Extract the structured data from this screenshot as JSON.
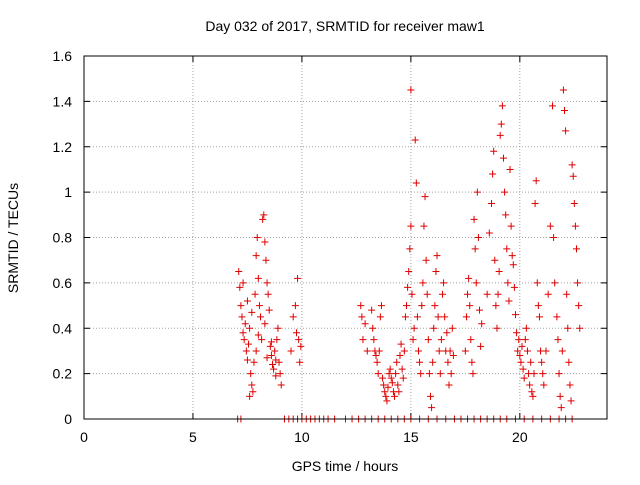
{
  "chart_data": {
    "type": "scatter",
    "title": "Day 032 of 2017, SRMTID for receiver maw1",
    "xlabel": "GPS time / hours",
    "ylabel": "SRMTID / TECUs",
    "xlim": [
      0,
      24
    ],
    "ylim": [
      0,
      1.6
    ],
    "x_ticks": [
      "0",
      "5",
      "10",
      "15",
      "20"
    ],
    "x_tick_values": [
      0,
      5,
      10,
      15,
      20
    ],
    "y_ticks": [
      "0",
      "0.2",
      "0.4",
      "0.6",
      "0.8",
      "1",
      "1.2",
      "1.4",
      "1.6"
    ],
    "y_tick_values": [
      0,
      0.2,
      0.4,
      0.6,
      0.8,
      1.0,
      1.2,
      1.4,
      1.6
    ],
    "grid": true,
    "marker": "+",
    "series_color": "#e00000",
    "series": [
      {
        "name": "maw1",
        "points": [
          [
            7.1,
            0.65
          ],
          [
            7.15,
            0.58
          ],
          [
            7.2,
            0.5
          ],
          [
            7.25,
            0.45
          ],
          [
            7.3,
            0.38
          ],
          [
            7.35,
            0.35
          ],
          [
            7.4,
            0.42
          ],
          [
            7.45,
            0.3
          ],
          [
            7.5,
            0.26
          ],
          [
            7.55,
            0.33
          ],
          [
            7.6,
            0.4
          ],
          [
            7.65,
            0.2
          ],
          [
            7.7,
            0.15
          ],
          [
            7.75,
            0.12
          ],
          [
            7.8,
            0.25
          ],
          [
            7.85,
            0.55
          ],
          [
            7.9,
            0.72
          ],
          [
            7.95,
            0.8
          ],
          [
            8.0,
            0.62
          ],
          [
            8.05,
            0.5
          ],
          [
            8.1,
            0.45
          ],
          [
            8.15,
            0.35
          ],
          [
            8.2,
            0.88
          ],
          [
            8.25,
            0.9
          ],
          [
            8.3,
            0.78
          ],
          [
            8.35,
            0.7
          ],
          [
            8.4,
            0.6
          ],
          [
            8.45,
            0.55
          ],
          [
            8.5,
            0.48
          ],
          [
            8.55,
            0.32
          ],
          [
            8.6,
            0.28
          ],
          [
            8.65,
            0.24
          ],
          [
            8.7,
            0.22
          ],
          [
            8.75,
            0.3
          ],
          [
            8.8,
            0.26
          ],
          [
            8.85,
            0.35
          ],
          [
            8.9,
            0.4
          ],
          [
            8.95,
            0.25
          ],
          [
            9.0,
            0.2
          ],
          [
            9.05,
            0.15
          ],
          [
            7.3,
            0.6
          ],
          [
            7.5,
            0.52
          ],
          [
            7.7,
            0.47
          ],
          [
            8.0,
            0.37
          ],
          [
            8.3,
            0.42
          ],
          [
            8.6,
            0.34
          ],
          [
            8.8,
            0.19
          ],
          [
            7.9,
            0.3
          ],
          [
            8.4,
            0.27
          ],
          [
            7.6,
            0.1
          ],
          [
            9.5,
            0.3
          ],
          [
            9.6,
            0.45
          ],
          [
            9.7,
            0.5
          ],
          [
            9.75,
            0.38
          ],
          [
            9.8,
            0.62
          ],
          [
            9.85,
            0.35
          ],
          [
            9.9,
            0.25
          ],
          [
            9.95,
            0.32
          ],
          [
            12.7,
            0.5
          ],
          [
            12.75,
            0.45
          ],
          [
            12.8,
            0.35
          ],
          [
            12.9,
            0.42
          ],
          [
            13.0,
            0.3
          ],
          [
            13.2,
            0.48
          ],
          [
            13.25,
            0.4
          ],
          [
            13.3,
            0.35
          ],
          [
            13.35,
            0.3
          ],
          [
            13.4,
            0.28
          ],
          [
            13.45,
            0.25
          ],
          [
            13.5,
            0.2
          ],
          [
            13.55,
            0.3
          ],
          [
            13.6,
            0.45
          ],
          [
            13.65,
            0.5
          ],
          [
            13.7,
            0.18
          ],
          [
            13.75,
            0.15
          ],
          [
            13.8,
            0.12
          ],
          [
            13.85,
            0.1
          ],
          [
            13.9,
            0.08
          ],
          [
            13.95,
            0.14
          ],
          [
            14.0,
            0.2
          ],
          [
            14.05,
            0.22
          ],
          [
            14.1,
            0.18
          ],
          [
            14.15,
            0.16
          ],
          [
            14.2,
            0.12
          ],
          [
            14.25,
            0.1
          ],
          [
            14.3,
            0.2
          ],
          [
            14.35,
            0.25
          ],
          [
            14.4,
            0.15
          ],
          [
            14.45,
            0.12
          ],
          [
            14.5,
            0.28
          ],
          [
            14.55,
            0.33
          ],
          [
            14.6,
            0.22
          ],
          [
            14.65,
            0.18
          ],
          [
            14.7,
            0.3
          ],
          [
            14.75,
            0.45
          ],
          [
            14.8,
            0.5
          ],
          [
            14.85,
            0.58
          ],
          [
            14.9,
            0.65
          ],
          [
            14.95,
            0.75
          ],
          [
            15.0,
            0.85
          ],
          [
            15.0,
            1.45
          ],
          [
            15.05,
            0.55
          ],
          [
            15.1,
            0.35
          ],
          [
            15.15,
            0.4
          ],
          [
            15.2,
            1.23
          ],
          [
            15.25,
            1.04
          ],
          [
            15.3,
            0.45
          ],
          [
            15.35,
            0.3
          ],
          [
            15.4,
            0.25
          ],
          [
            15.45,
            0.2
          ],
          [
            15.5,
            0.5
          ],
          [
            15.55,
            0.6
          ],
          [
            15.6,
            0.85
          ],
          [
            15.65,
            0.98
          ],
          [
            15.7,
            0.7
          ],
          [
            15.75,
            0.55
          ],
          [
            15.8,
            0.35
          ],
          [
            15.85,
            0.2
          ],
          [
            15.9,
            0.1
          ],
          [
            15.95,
            0.05
          ],
          [
            16.0,
            0.25
          ],
          [
            16.05,
            0.4
          ],
          [
            16.1,
            0.5
          ],
          [
            16.15,
            0.65
          ],
          [
            16.2,
            0.72
          ],
          [
            16.25,
            0.45
          ],
          [
            16.3,
            0.3
          ],
          [
            16.35,
            0.2
          ],
          [
            16.4,
            0.35
          ],
          [
            16.45,
            0.55
          ],
          [
            16.5,
            0.6
          ],
          [
            16.55,
            0.45
          ],
          [
            16.6,
            0.3
          ],
          [
            16.65,
            0.38
          ],
          [
            16.7,
            0.25
          ],
          [
            16.75,
            0.15
          ],
          [
            16.8,
            0.3
          ],
          [
            16.85,
            0.2
          ],
          [
            16.9,
            0.4
          ],
          [
            16.95,
            0.28
          ],
          [
            17.5,
            0.3
          ],
          [
            17.55,
            0.45
          ],
          [
            17.6,
            0.55
          ],
          [
            17.65,
            0.62
          ],
          [
            17.7,
            0.5
          ],
          [
            17.75,
            0.35
          ],
          [
            17.8,
            0.25
          ],
          [
            17.85,
            0.2
          ],
          [
            17.9,
            0.88
          ],
          [
            17.95,
            0.75
          ],
          [
            18.0,
            0.6
          ],
          [
            18.05,
            1.0
          ],
          [
            18.1,
            0.8
          ],
          [
            18.15,
            0.48
          ],
          [
            18.2,
            0.32
          ],
          [
            18.25,
            0.42
          ],
          [
            18.5,
            0.55
          ],
          [
            18.6,
            0.82
          ],
          [
            18.7,
            0.95
          ],
          [
            18.75,
            1.08
          ],
          [
            18.8,
            1.18
          ],
          [
            18.85,
            0.7
          ],
          [
            18.9,
            0.5
          ],
          [
            18.95,
            0.4
          ],
          [
            19.0,
            0.55
          ],
          [
            19.05,
            0.65
          ],
          [
            19.1,
            1.25
          ],
          [
            19.15,
            1.3
          ],
          [
            19.2,
            1.38
          ],
          [
            19.25,
            1.15
          ],
          [
            19.3,
            1.0
          ],
          [
            19.35,
            0.9
          ],
          [
            19.4,
            0.75
          ],
          [
            19.45,
            0.6
          ],
          [
            19.5,
            0.52
          ],
          [
            19.55,
            1.1
          ],
          [
            19.6,
            0.85
          ],
          [
            19.65,
            0.72
          ],
          [
            19.7,
            0.68
          ],
          [
            19.75,
            0.58
          ],
          [
            19.8,
            0.46
          ],
          [
            19.85,
            0.38
          ],
          [
            19.9,
            0.3
          ],
          [
            19.95,
            0.35
          ],
          [
            20.0,
            0.28
          ],
          [
            20.05,
            0.25
          ],
          [
            20.1,
            0.32
          ],
          [
            20.15,
            0.22
          ],
          [
            20.2,
            0.18
          ],
          [
            20.25,
            0.35
          ],
          [
            20.3,
            0.4
          ],
          [
            20.35,
            0.3
          ],
          [
            20.4,
            0.2
          ],
          [
            20.45,
            0.15
          ],
          [
            20.5,
            0.25
          ],
          [
            20.55,
            0.12
          ],
          [
            20.6,
            0.1
          ],
          [
            20.65,
            0.2
          ],
          [
            20.7,
            0.95
          ],
          [
            20.75,
            1.05
          ],
          [
            20.8,
            0.6
          ],
          [
            20.85,
            0.5
          ],
          [
            20.9,
            0.45
          ],
          [
            20.95,
            0.3
          ],
          [
            21.0,
            0.25
          ],
          [
            21.05,
            0.2
          ],
          [
            21.1,
            0.15
          ],
          [
            21.2,
            0.3
          ],
          [
            21.3,
            0.55
          ],
          [
            21.4,
            0.85
          ],
          [
            21.5,
            1.38
          ],
          [
            21.55,
            0.8
          ],
          [
            21.6,
            0.6
          ],
          [
            21.7,
            0.45
          ],
          [
            21.75,
            0.35
          ],
          [
            21.8,
            0.2
          ],
          [
            21.85,
            0.1
          ],
          [
            21.9,
            0.05
          ],
          [
            21.95,
            0.3
          ],
          [
            22.0,
            1.45
          ],
          [
            22.05,
            1.36
          ],
          [
            22.1,
            1.27
          ],
          [
            22.15,
            0.55
          ],
          [
            22.2,
            0.4
          ],
          [
            22.25,
            0.25
          ],
          [
            22.3,
            0.15
          ],
          [
            22.35,
            0.08
          ],
          [
            22.4,
            1.12
          ],
          [
            22.45,
            1.07
          ],
          [
            22.5,
            0.95
          ],
          [
            22.55,
            0.85
          ],
          [
            22.6,
            0.75
          ],
          [
            22.65,
            0.6
          ],
          [
            22.7,
            0.5
          ],
          [
            22.75,
            0.4
          ],
          [
            7.05,
            0.0
          ],
          [
            7.2,
            0.0
          ],
          [
            9.2,
            0.0
          ],
          [
            9.4,
            0.0
          ],
          [
            9.6,
            0.0
          ],
          [
            9.8,
            0.0
          ],
          [
            10.0,
            0.0
          ],
          [
            10.2,
            0.0
          ],
          [
            10.4,
            0.0
          ],
          [
            10.6,
            0.0
          ],
          [
            10.8,
            0.0
          ],
          [
            11.0,
            0.0
          ],
          [
            11.2,
            0.0
          ],
          [
            11.5,
            0.0
          ],
          [
            12.0,
            0.0
          ],
          [
            12.3,
            0.0
          ],
          [
            12.6,
            0.0
          ],
          [
            12.9,
            0.0
          ],
          [
            13.2,
            0.0
          ],
          [
            13.5,
            0.0
          ],
          [
            13.8,
            0.0
          ],
          [
            14.1,
            0.0
          ],
          [
            14.4,
            0.0
          ],
          [
            14.7,
            0.0
          ],
          [
            15.0,
            0.0
          ],
          [
            15.4,
            0.0
          ],
          [
            15.8,
            0.0
          ],
          [
            16.2,
            0.0
          ],
          [
            16.6,
            0.0
          ],
          [
            17.0,
            0.0
          ],
          [
            17.3,
            0.0
          ],
          [
            17.6,
            0.0
          ],
          [
            17.9,
            0.0
          ],
          [
            18.2,
            0.0
          ],
          [
            18.5,
            0.0
          ],
          [
            18.8,
            0.0
          ],
          [
            19.1,
            0.0
          ],
          [
            19.4,
            0.0
          ],
          [
            19.8,
            0.0
          ],
          [
            20.2,
            0.0
          ],
          [
            20.6,
            0.0
          ],
          [
            21.0,
            0.0
          ],
          [
            21.4,
            0.0
          ],
          [
            21.8,
            0.0
          ],
          [
            22.1,
            0.0
          ],
          [
            22.4,
            0.0
          ]
        ]
      }
    ]
  }
}
